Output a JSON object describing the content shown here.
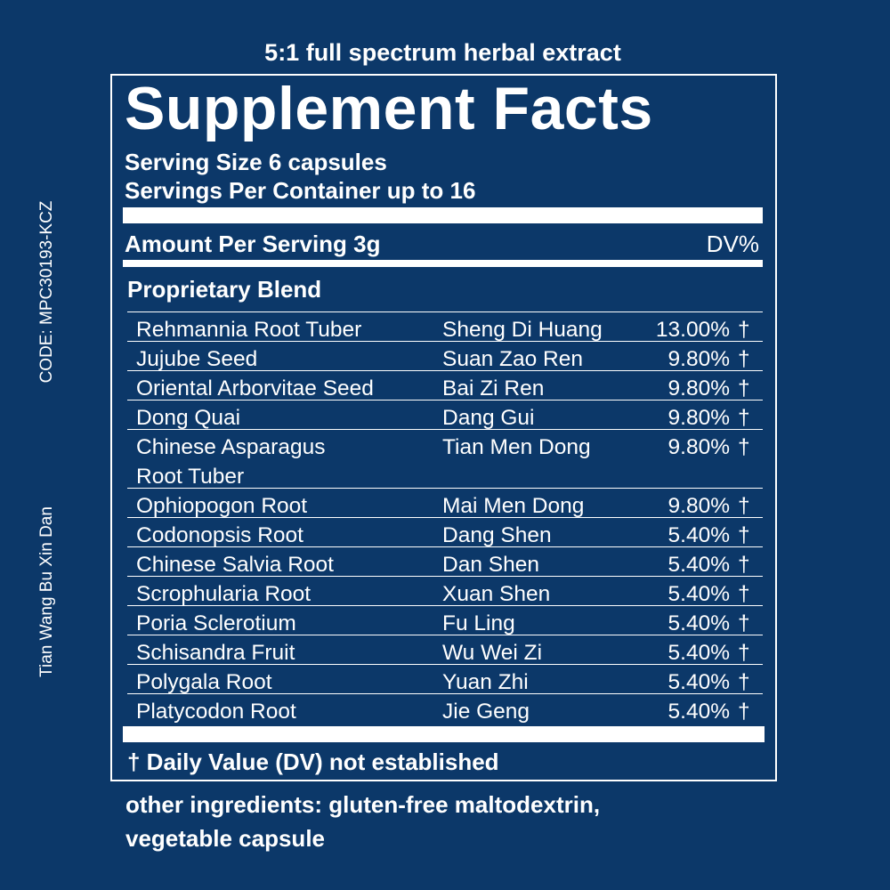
{
  "header": {
    "tagline": "5:1 full spectrum herbal extract",
    "title": "Supplement Facts",
    "serving_size": "Serving Size 6 capsules",
    "servings_per_container": "Servings Per Container up to 16"
  },
  "amount_row": {
    "label": "Amount Per Serving 3g",
    "dv_heading": "DV%"
  },
  "blend": {
    "title": "Proprietary Blend",
    "rows": [
      [
        "Rehmannia Root Tuber",
        "Sheng Di Huang",
        "13.00%",
        "†"
      ],
      [
        "Jujube Seed",
        "Suan Zao Ren",
        "9.80%",
        "†"
      ],
      [
        "Oriental Arborvitae Seed",
        "Bai Zi Ren",
        "9.80%",
        "†"
      ],
      [
        "Dong Quai",
        "Dang Gui",
        "9.80%",
        "†"
      ],
      [
        "Chinese Asparagus\nRoot Tuber",
        "Tian Men Dong",
        "9.80%",
        "†"
      ],
      [
        "Ophiopogon Root",
        "Mai Men Dong",
        "9.80%",
        "†"
      ],
      [
        "Codonopsis Root",
        "Dang Shen",
        "5.40%",
        "†"
      ],
      [
        "Chinese Salvia Root",
        "Dan Shen",
        "5.40%",
        "†"
      ],
      [
        "Scrophularia Root",
        "Xuan Shen",
        "5.40%",
        "†"
      ],
      [
        "Poria Sclerotium",
        "Fu Ling",
        "5.40%",
        "†"
      ],
      [
        "Schisandra Fruit",
        "Wu Wei Zi",
        "5.40%",
        "†"
      ],
      [
        "Polygala Root",
        "Yuan Zhi",
        "5.40%",
        "†"
      ],
      [
        "Platycodon Root",
        "Jie Geng",
        "5.40%",
        "†"
      ]
    ]
  },
  "footnote": "† Daily Value (DV) not established",
  "other_ingredients": "other ingredients: gluten-free maltodextrin,\nvegetable capsule",
  "side": {
    "code": "CODE: MPC30193-KCZ",
    "product_name": "Tian Wang Bu Xin Dan"
  }
}
